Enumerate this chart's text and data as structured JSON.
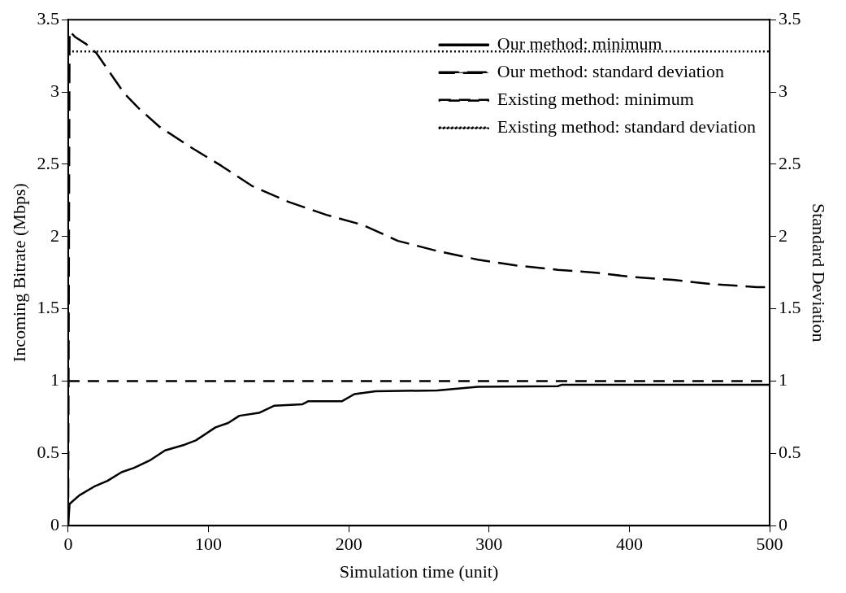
{
  "chart_data": {
    "type": "line",
    "xlabel": "Simulation time (unit)",
    "ylabel": "Incoming Bitrate (Mbps)",
    "y2label": "Standard Deviation",
    "xlim": [
      0,
      500
    ],
    "xticks": [
      0,
      100,
      200,
      300,
      400,
      500
    ],
    "ylim": [
      0,
      3.5
    ],
    "yticks": [
      0,
      0.5,
      1,
      1.5,
      2,
      2.5,
      3,
      3.5
    ],
    "y2lim": [
      0,
      3.5
    ],
    "y2ticks": [
      0,
      0.5,
      1,
      1.5,
      2,
      2.5,
      3,
      3.5
    ],
    "grid": false,
    "legend": "top right",
    "marker": "none",
    "series": [
      {
        "name": "Our method: minimum",
        "color": "#000000",
        "line_style": "solid",
        "x": [
          0,
          1,
          8,
          18.5,
          28,
          38,
          47,
          58,
          69,
          83,
          91,
          105,
          114,
          122,
          136,
          147,
          167,
          171,
          182,
          195,
          204,
          219,
          263,
          292,
          349,
          352,
          500
        ],
        "values": [
          0,
          0.15,
          0.21,
          0.27,
          0.31,
          0.37,
          0.4,
          0.45,
          0.52,
          0.56,
          0.59,
          0.68,
          0.71,
          0.76,
          0.78,
          0.83,
          0.84,
          0.86,
          0.86,
          0.86,
          0.91,
          0.93,
          0.935,
          0.96,
          0.965,
          0.975,
          0.975
        ]
      },
      {
        "name": "Our method: standard deviation",
        "color": "#000000",
        "line_style": "dashed",
        "axis": "y2",
        "x": [
          0,
          1,
          5,
          13,
          20,
          40,
          50,
          65,
          87,
          109,
          131,
          157,
          184,
          210,
          235,
          263,
          292,
          319,
          349,
          376,
          402,
          431,
          460,
          491,
          500
        ],
        "values": [
          0,
          3.42,
          3.38,
          3.33,
          3.27,
          2.99,
          2.89,
          2.76,
          2.62,
          2.49,
          2.35,
          2.24,
          2.15,
          2.08,
          1.97,
          1.9,
          1.84,
          1.8,
          1.77,
          1.75,
          1.72,
          1.7,
          1.67,
          1.65,
          1.65
        ]
      },
      {
        "name": "Existing method: minimum",
        "color": "#000000",
        "line_style": "dashed",
        "x": [
          0,
          500
        ],
        "values": [
          1,
          1
        ]
      },
      {
        "name": "Existing method: standard deviation",
        "color": "#000000",
        "line_style": "dotted",
        "axis": "y2",
        "x": [
          0,
          500
        ],
        "values": [
          3.28,
          3.28
        ]
      }
    ]
  }
}
